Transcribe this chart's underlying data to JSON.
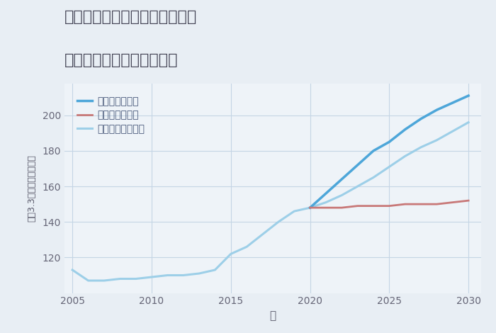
{
  "title_line1": "大阪府大阪市住吉区帝塚山東の",
  "title_line2": "中古マンションの価格推移",
  "xlabel": "年",
  "ylabel": "坪（3.3㎡）単価（万円）",
  "fig_bg_color": "#e8eef4",
  "plot_bg_color": "#eef3f8",
  "legend": [
    "グッドシナリオ",
    "バッドシナリオ",
    "ノーマルシナリオ"
  ],
  "good_color": "#4da6d9",
  "bad_color": "#c87878",
  "normal_color": "#9dcfe8",
  "years_hist": [
    2005,
    2006,
    2007,
    2008,
    2009,
    2010,
    2011,
    2012,
    2013,
    2014,
    2015,
    2016,
    2017,
    2018,
    2019,
    2020
  ],
  "values_hist": [
    113,
    107,
    107,
    108,
    108,
    109,
    110,
    110,
    111,
    113,
    122,
    126,
    133,
    140,
    146,
    148
  ],
  "years_future": [
    2020,
    2021,
    2022,
    2023,
    2024,
    2025,
    2026,
    2027,
    2028,
    2029,
    2030
  ],
  "good_future": [
    148,
    156,
    164,
    172,
    180,
    185,
    192,
    198,
    203,
    207,
    211
  ],
  "bad_future": [
    148,
    148,
    148,
    149,
    149,
    149,
    150,
    150,
    150,
    151,
    152
  ],
  "normal_future": [
    148,
    151,
    155,
    160,
    165,
    171,
    177,
    182,
    186,
    191,
    196
  ],
  "ylim": [
    100,
    218
  ],
  "xlim": [
    2004.5,
    2030.8
  ],
  "yticks": [
    120,
    140,
    160,
    180,
    200
  ],
  "xticks": [
    2005,
    2010,
    2015,
    2020,
    2025,
    2030
  ],
  "grid_color": "#c5d5e5",
  "tick_color": "#666677",
  "label_color": "#555566",
  "title_color": "#444455",
  "legend_color": "#445577"
}
